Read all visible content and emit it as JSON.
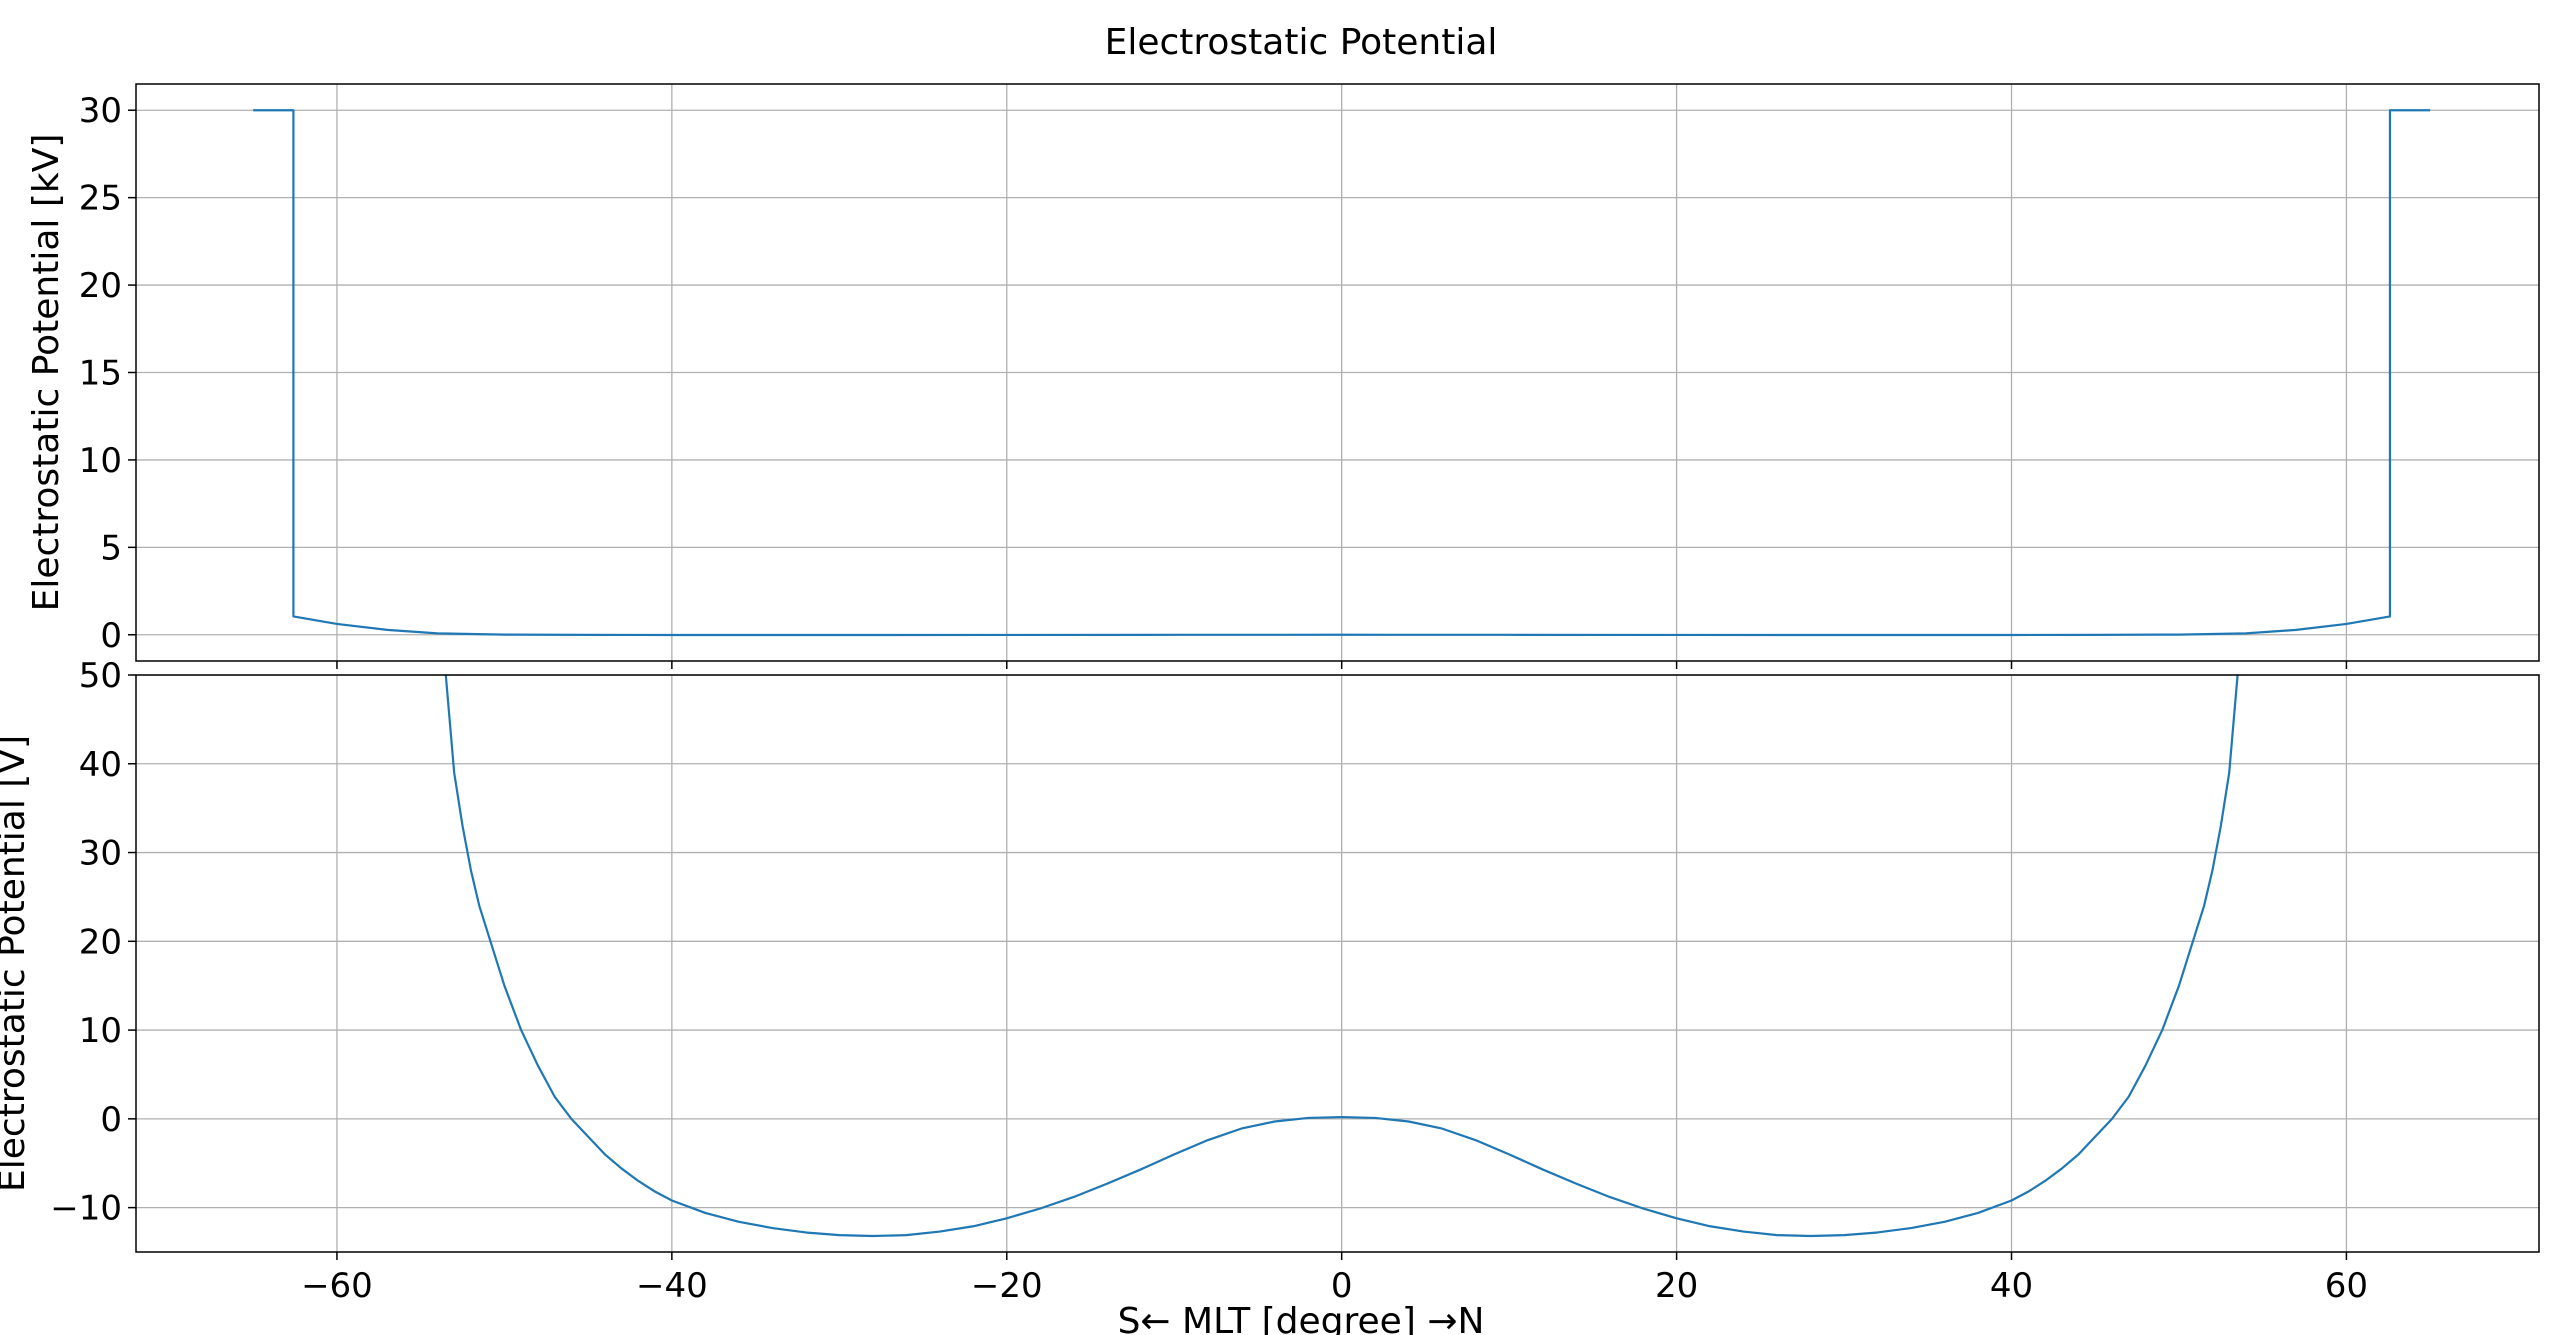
{
  "figure": {
    "title": "Electrostatic Potential",
    "xlabel": "S← MLT [degree] →N"
  },
  "chart_data": [
    {
      "type": "line",
      "title": "Electrostatic Potential",
      "xlabel": "",
      "ylabel": "Electrostatic Potential [kV]",
      "xlim": [
        -72,
        71.5
      ],
      "ylim": [
        -1.5,
        31.5
      ],
      "xticks": [
        -60,
        -40,
        -20,
        0,
        20,
        40,
        60
      ],
      "xtick_labels": [
        "",
        "",
        "",
        "",
        "",
        "",
        ""
      ],
      "yticks": [
        0,
        5,
        10,
        15,
        20,
        25,
        30
      ],
      "ytick_labels": [
        "0",
        "5",
        "10",
        "15",
        "20",
        "25",
        "30"
      ],
      "grid": true,
      "color": "#1f77b4",
      "series": [
        {
          "x": [
            -65,
            -62.6,
            -62.6,
            -60,
            -57,
            -54,
            -50,
            -45,
            -40,
            -30,
            -20,
            -10,
            0,
            10,
            20,
            30,
            40,
            45,
            50,
            54,
            57,
            60,
            62.6,
            62.6,
            65
          ],
          "y": [
            30,
            30,
            1.05,
            0.62,
            0.28,
            0.08,
            0.01,
            -0.005,
            -0.011,
            -0.013,
            -0.01,
            -0.003,
            0,
            -0.003,
            -0.01,
            -0.013,
            -0.011,
            -0.005,
            0.01,
            0.08,
            0.28,
            0.62,
            1.05,
            30,
            30
          ]
        }
      ]
    },
    {
      "type": "line",
      "title": "",
      "xlabel": "S← MLT [degree] →N",
      "ylabel": "Electrostatic Potential [V]",
      "xlim": [
        -72,
        71.5
      ],
      "ylim": [
        -15,
        50
      ],
      "xticks": [
        -60,
        -40,
        -20,
        0,
        20,
        40,
        60
      ],
      "xtick_labels": [
        "−60",
        "−40",
        "−20",
        "0",
        "20",
        "40",
        "60"
      ],
      "yticks": [
        -10,
        0,
        10,
        20,
        30,
        40,
        50
      ],
      "ytick_labels": [
        "−10",
        "0",
        "10",
        "20",
        "30",
        "40",
        "50"
      ],
      "grid": true,
      "color": "#1f77b4",
      "series": [
        {
          "x": [
            -53.5,
            -53.0,
            -52.5,
            -52.0,
            -51.5,
            -51.0,
            -50.5,
            -50.0,
            -49.0,
            -48.0,
            -47.0,
            -46.0,
            -45.0,
            -44.0,
            -43.0,
            -42.0,
            -41.0,
            -40.0,
            -38.0,
            -36.0,
            -34.0,
            -32.0,
            -30.0,
            -28.0,
            -26.0,
            -24.0,
            -22.0,
            -20.0,
            -18.0,
            -16.0,
            -14.0,
            -12.0,
            -10.0,
            -8.0,
            -6.0,
            -4.0,
            -2.0,
            0.0,
            2.0,
            4.0,
            6.0,
            8.0,
            10.0,
            12.0,
            14.0,
            16.0,
            18.0,
            20.0,
            22.0,
            24.0,
            26.0,
            28.0,
            30.0,
            32.0,
            34.0,
            36.0,
            38.0,
            40.0,
            41.0,
            42.0,
            43.0,
            44.0,
            45.0,
            46.0,
            47.0,
            48.0,
            49.0,
            50.0,
            50.5,
            51.0,
            51.5,
            52.0,
            52.5,
            53.0,
            53.5
          ],
          "y": [
            50,
            39,
            33,
            28,
            24,
            21,
            18,
            15,
            10,
            6,
            2.5,
            0,
            -2,
            -4,
            -5.6,
            -7,
            -8.2,
            -9.2,
            -10.6,
            -11.6,
            -12.3,
            -12.8,
            -13.1,
            -13.2,
            -13.1,
            -12.7,
            -12.1,
            -11.2,
            -10.1,
            -8.8,
            -7.3,
            -5.7,
            -4.0,
            -2.4,
            -1.1,
            -0.3,
            0.1,
            0.2,
            0.1,
            -0.3,
            -1.1,
            -2.4,
            -4.0,
            -5.7,
            -7.3,
            -8.8,
            -10.1,
            -11.2,
            -12.1,
            -12.7,
            -13.1,
            -13.2,
            -13.1,
            -12.8,
            -12.3,
            -11.6,
            -10.6,
            -9.2,
            -8.2,
            -7,
            -5.6,
            -4,
            -2,
            0,
            2.5,
            6,
            10,
            15,
            18,
            21,
            24,
            28,
            33,
            39,
            50
          ]
        }
      ]
    }
  ]
}
